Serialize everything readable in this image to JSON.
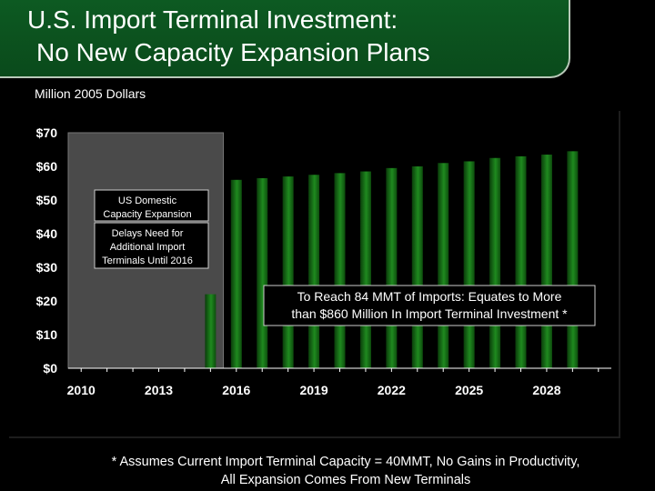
{
  "header": {
    "title_line1": "U.S. Import Terminal Investment:",
    "title_line2": "No New Capacity Expansion Plans"
  },
  "units_label": "Million 2005 Dollars",
  "chart_data": {
    "type": "bar",
    "title": "",
    "xlabel": "",
    "ylabel": "Million 2005 Dollars",
    "ylim": [
      0,
      70
    ],
    "y_ticks": [
      "$0",
      "$10",
      "$20",
      "$30",
      "$40",
      "$50",
      "$60",
      "$70"
    ],
    "y_tick_values": [
      0,
      10,
      20,
      30,
      40,
      50,
      60,
      70
    ],
    "x_tick_labels": [
      "2010",
      "2013",
      "2016",
      "2019",
      "2022",
      "2025",
      "2028"
    ],
    "x_tick_values": [
      2010,
      2013,
      2016,
      2019,
      2022,
      2025,
      2028
    ],
    "x": [
      2015,
      2016,
      2017,
      2018,
      2019,
      2020,
      2021,
      2022,
      2023,
      2024,
      2025,
      2026,
      2027,
      2028,
      2029
    ],
    "values": [
      22,
      56,
      56.5,
      57,
      57.5,
      58,
      58.5,
      59.5,
      60,
      61,
      61.5,
      62.5,
      63,
      63.5,
      64.5
    ],
    "shaded_period": [
      2009.5,
      2015.5
    ],
    "bar_color": "#1d7a1d",
    "shade_color": "#4a4a4a",
    "annotations": {
      "box1_line1": "US Domestic",
      "box1_line2": "Capacity  Expansion",
      "box2_line1": "Delays Need for",
      "box2_line2": "Additional Import",
      "box2_line3": "Terminals Until 2016",
      "box3_line1": "To Reach 84 MMT of Imports: Equates to More",
      "box3_line2": "than $860 Million In Import Terminal Investment *"
    }
  },
  "footnote": {
    "line1": "* Assumes Current Import Terminal Capacity = 40MMT, No Gains in Productivity,",
    "line2": "All Expansion Comes From New Terminals"
  }
}
